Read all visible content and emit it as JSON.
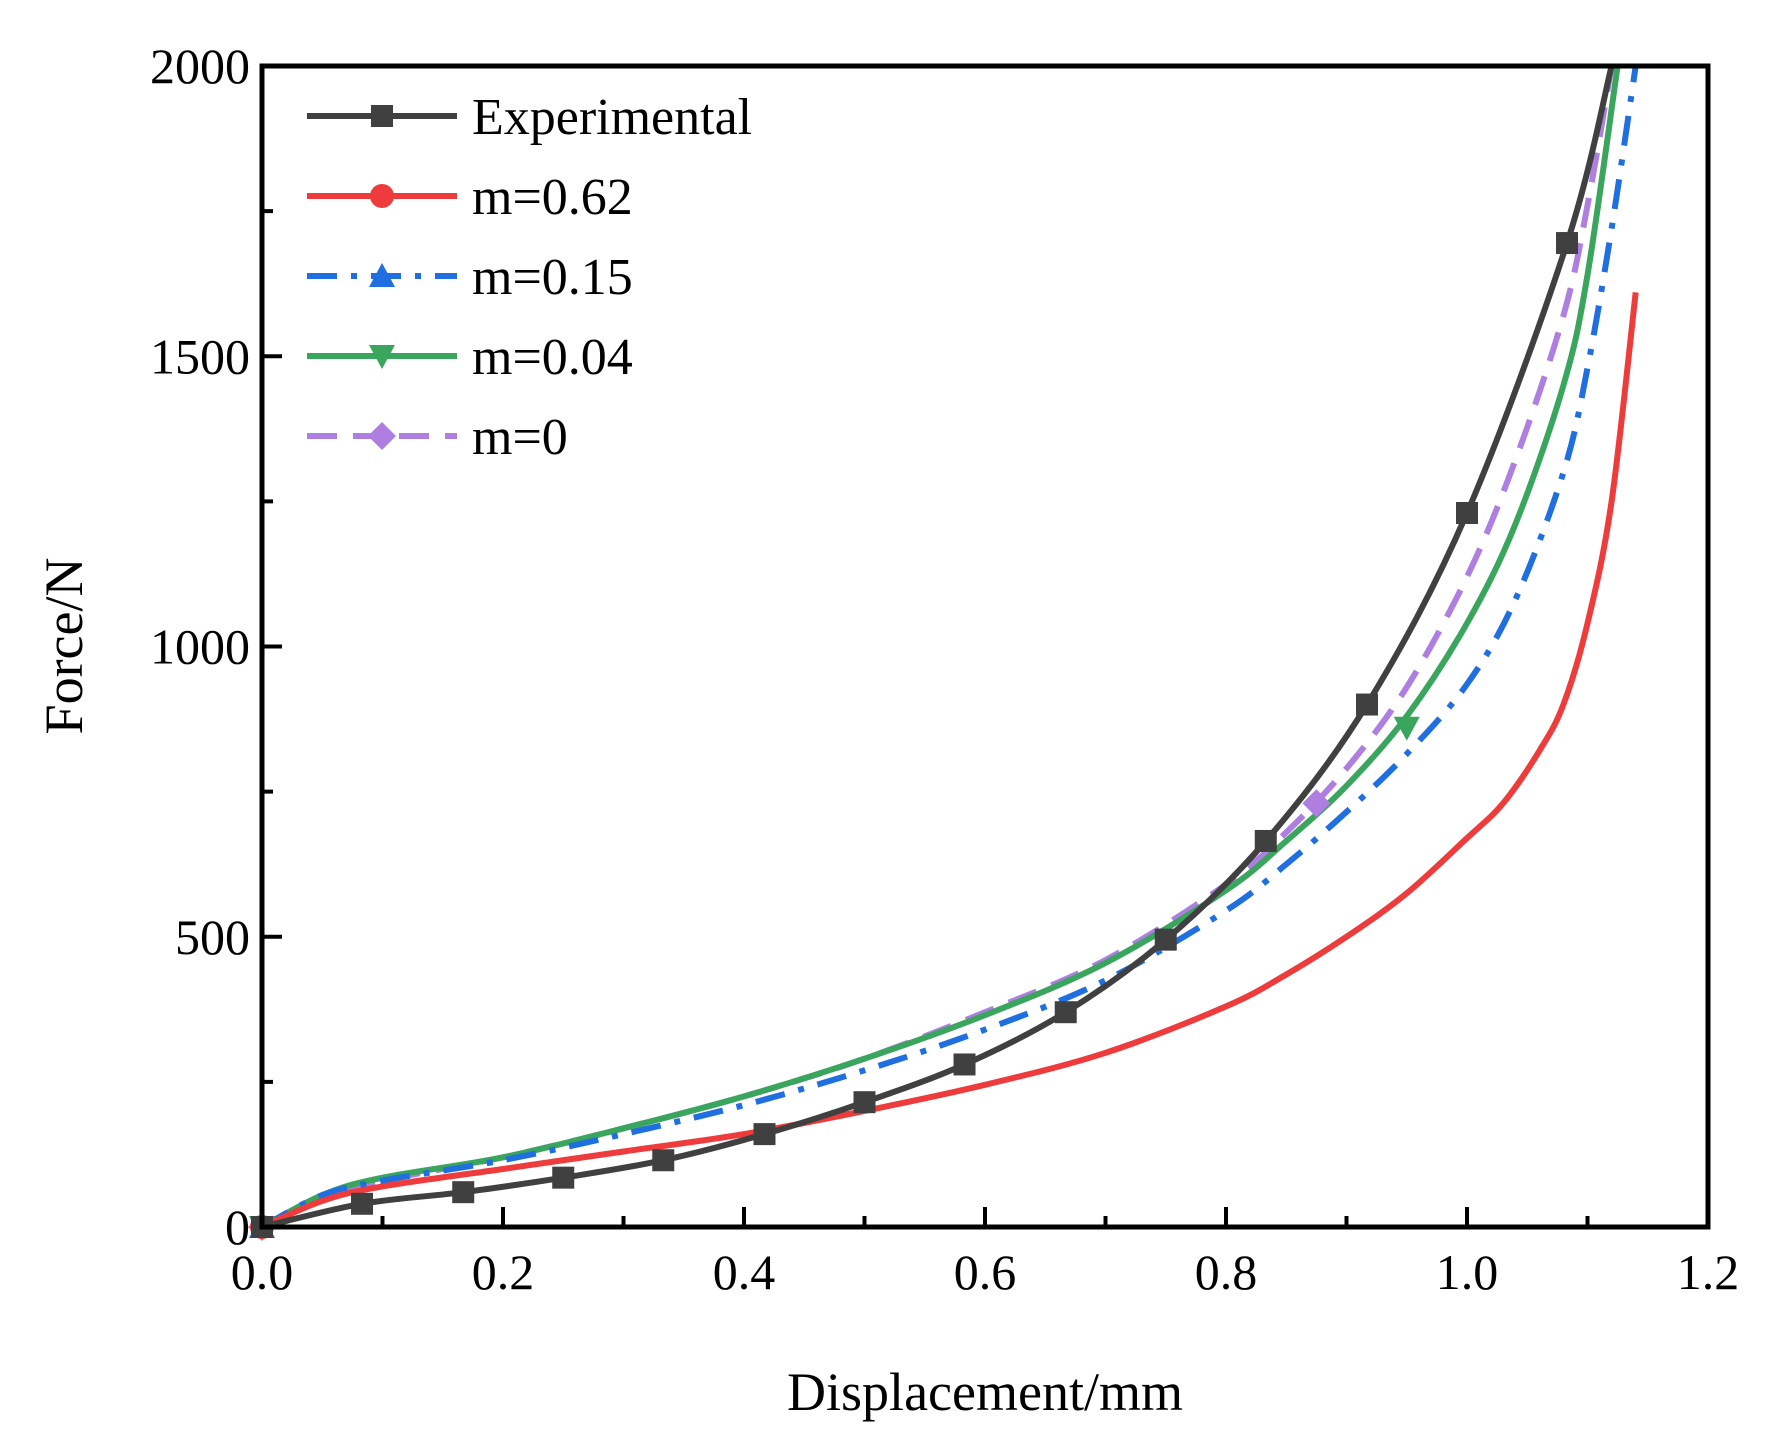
{
  "chart_data": {
    "type": "line",
    "title": "",
    "xlabel": "Displacement/mm",
    "ylabel": "Force/N",
    "xlim": [
      0,
      1.2
    ],
    "ylim": [
      0,
      2000
    ],
    "x_ticks": [
      "0.0",
      "0.2",
      "0.4",
      "0.6",
      "0.8",
      "1.0",
      "1.2"
    ],
    "y_ticks": [
      "0",
      "500",
      "1000",
      "1500",
      "2000"
    ],
    "legend_position": "top-left",
    "series": [
      {
        "name": "Experimental",
        "color": "#404040",
        "dash": "solid",
        "marker": "square",
        "x": [
          0,
          0.083,
          0.167,
          0.25,
          0.333,
          0.417,
          0.5,
          0.583,
          0.667,
          0.75,
          0.833,
          0.917,
          1.0,
          1.083,
          1.12
        ],
        "y": [
          0,
          40,
          60,
          85,
          115,
          160,
          215,
          280,
          370,
          495,
          665,
          900,
          1230,
          1695,
          2000
        ],
        "marker_x": [
          0,
          0.083,
          0.167,
          0.25,
          0.333,
          0.417,
          0.5,
          0.583,
          0.667,
          0.75,
          0.833,
          0.917,
          1.0,
          1.083
        ],
        "marker_y": [
          0,
          40,
          60,
          85,
          115,
          160,
          215,
          280,
          370,
          495,
          665,
          900,
          1230,
          1695
        ]
      },
      {
        "name": "m=0.62",
        "color": "#ee3b3b",
        "dash": "solid",
        "marker": "circle",
        "x": [
          0,
          0.05,
          0.1,
          0.2,
          0.3,
          0.4,
          0.5,
          0.6,
          0.7,
          0.8,
          0.85,
          0.9,
          0.95,
          1.0,
          1.03,
          1.06,
          1.08,
          1.1,
          1.12,
          1.14
        ],
        "y": [
          0,
          45,
          70,
          100,
          130,
          160,
          200,
          245,
          300,
          380,
          435,
          500,
          575,
          670,
          730,
          820,
          900,
          1040,
          1250,
          1610
        ],
        "marker_x": [
          0
        ],
        "marker_y": [
          0
        ]
      },
      {
        "name": "m=0.15",
        "color": "#1f6fe0",
        "dash": "dashdot",
        "marker": "triangle",
        "x": [
          0,
          0.05,
          0.1,
          0.2,
          0.3,
          0.4,
          0.5,
          0.6,
          0.7,
          0.8,
          0.85,
          0.9,
          0.95,
          1.0,
          1.04,
          1.08,
          1.1,
          1.12,
          1.14
        ],
        "y": [
          0,
          55,
          80,
          115,
          160,
          210,
          270,
          340,
          425,
          545,
          625,
          715,
          815,
          935,
          1080,
          1300,
          1480,
          1720,
          2000
        ],
        "marker_x": [
          0
        ],
        "marker_y": [
          0
        ]
      },
      {
        "name": "m=0.04",
        "color": "#3aa55d",
        "dash": "solid",
        "marker": "triangle-down",
        "x": [
          0,
          0.05,
          0.1,
          0.2,
          0.3,
          0.4,
          0.5,
          0.6,
          0.7,
          0.8,
          0.85,
          0.9,
          0.95,
          1.0,
          1.04,
          1.08,
          1.1,
          1.125
        ],
        "y": [
          0,
          55,
          85,
          120,
          170,
          225,
          290,
          365,
          455,
          580,
          665,
          760,
          880,
          1040,
          1210,
          1450,
          1640,
          2000
        ],
        "marker_x": [
          0,
          0.95
        ],
        "marker_y": [
          0,
          860
        ]
      },
      {
        "name": "m=0",
        "color": "#ae7fe0",
        "dash": "dashed",
        "marker": "diamond",
        "x": [
          0,
          0.05,
          0.1,
          0.2,
          0.3,
          0.4,
          0.5,
          0.6,
          0.7,
          0.8,
          0.85,
          0.9,
          0.95,
          1.0,
          1.04,
          1.08,
          1.1,
          1.12
        ],
        "y": [
          0,
          50,
          80,
          120,
          170,
          225,
          290,
          370,
          460,
          590,
          680,
          790,
          930,
          1120,
          1320,
          1570,
          1760,
          2000
        ],
        "marker_x": [
          0,
          0.875
        ],
        "marker_y": [
          0,
          730
        ]
      }
    ]
  }
}
